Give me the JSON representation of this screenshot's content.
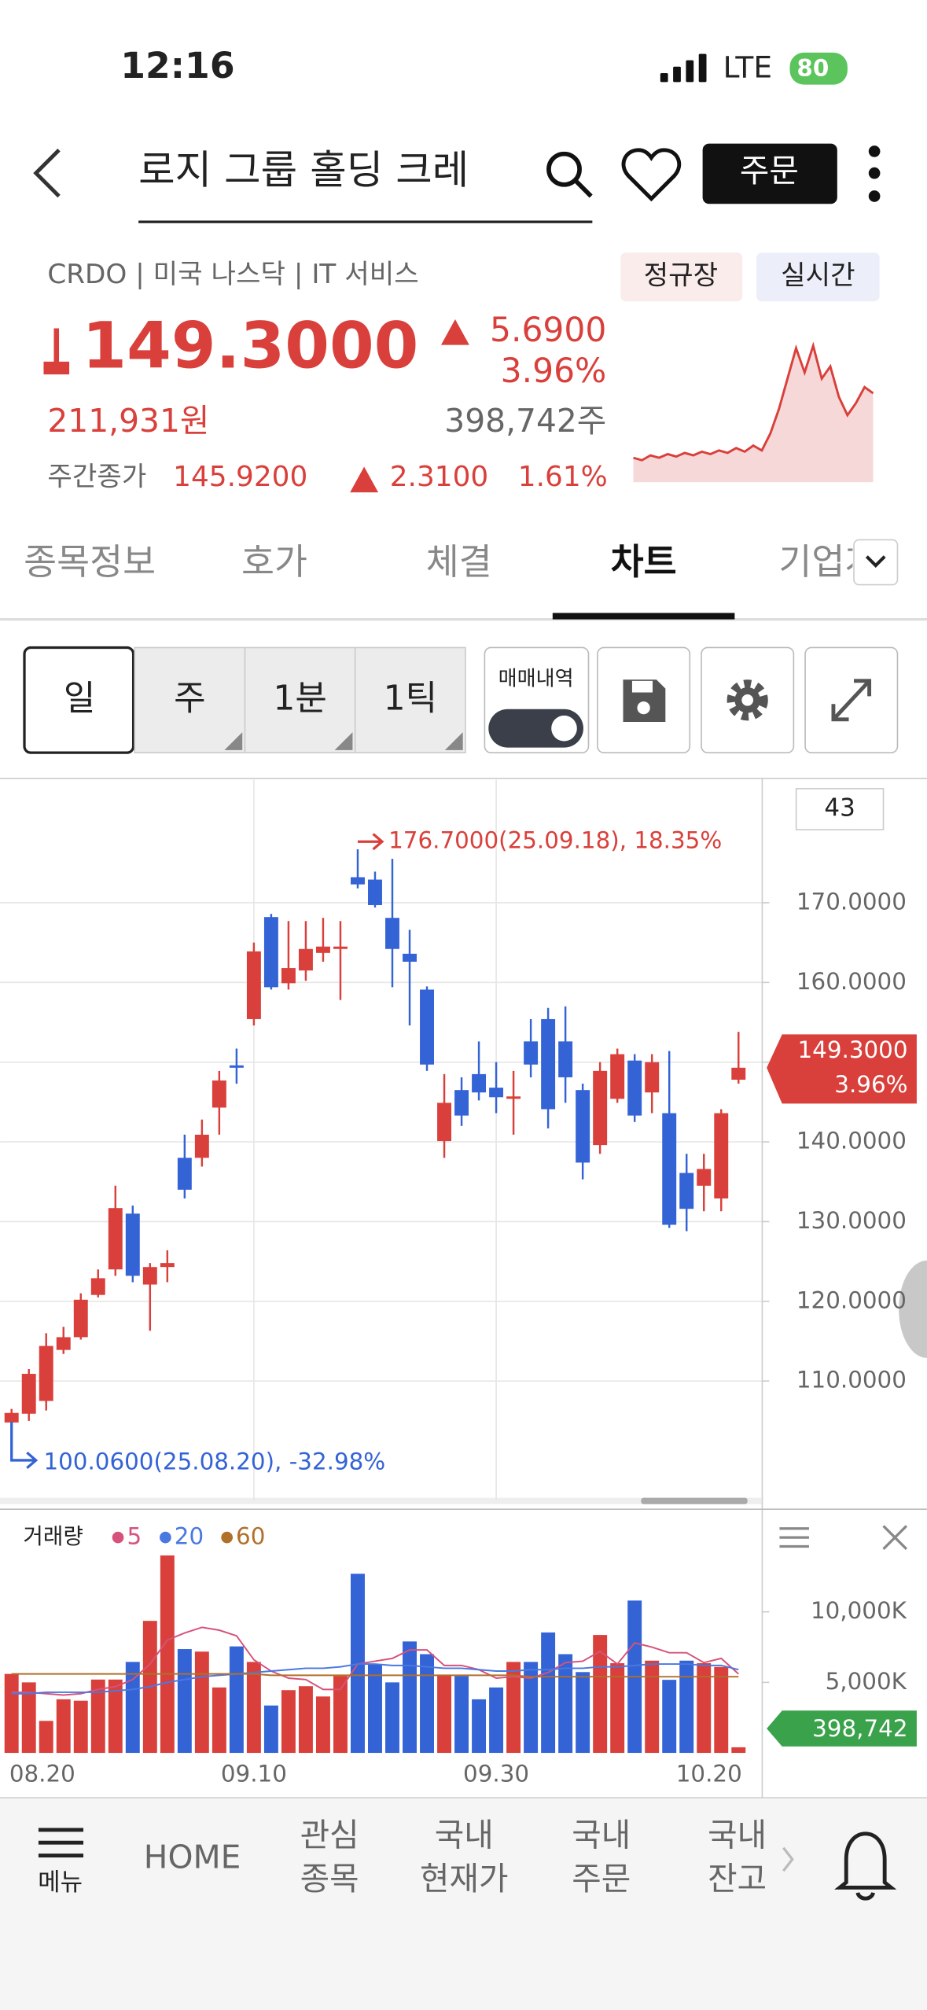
{
  "status_bar": {
    "time": "12:16",
    "network": "LTE",
    "battery": "80"
  },
  "header": {
    "search_text": "로지 그룹 홀딩   크레",
    "order_button": "주문"
  },
  "stock": {
    "ticker_line": "CRDO | 미국 나스닥 | IT 서비스",
    "badges": [
      "정규장",
      "실시간"
    ],
    "price": "149.3000",
    "change": "5.6900",
    "change_pct": "3.96%",
    "price_krw": "211,931원",
    "volume": "398,742주",
    "after_label": "주간종가",
    "after_price": "145.9200",
    "after_change": "2.3100",
    "after_pct": "1.61%"
  },
  "tabs": {
    "items": [
      "종목정보",
      "호가",
      "체결",
      "차트",
      "기업개"
    ],
    "active": 3
  },
  "toolbar": {
    "periods": [
      "일",
      "주",
      "1분",
      "1틱"
    ],
    "selected": 0,
    "trade_history": "매매내역"
  },
  "chart_data": [
    {
      "type": "candlestick",
      "visible_count": 43,
      "up_color": "#d9403b",
      "down_color": "#3463d6",
      "open": [
        104.8,
        105.9,
        107.5,
        113.9,
        115.5,
        120.8,
        124.0,
        131.0,
        122.1,
        124.3,
        138.0,
        138.0,
        144.3,
        149.6,
        155.4,
        168.2,
        159.9,
        161.5,
        163.7,
        164.2,
        173.2,
        172.9,
        168.1,
        163.6,
        159.1,
        140.1,
        146.5,
        148.5,
        146.8,
        145.4,
        152.6,
        155.4,
        152.6,
        146.5,
        139.6,
        145.4,
        150.2,
        146.2,
        143.6,
        136.1,
        134.5,
        132.9,
        147.8
      ],
      "high": [
        106.5,
        111.5,
        116.0,
        116.8,
        121.0,
        124.0,
        134.5,
        132.0,
        124.8,
        126.4,
        140.9,
        142.8,
        148.9,
        151.7,
        165.0,
        168.6,
        167.7,
        167.7,
        168.1,
        167.7,
        176.7,
        173.9,
        175.5,
        166.6,
        159.5,
        148.5,
        148.1,
        152.6,
        150.0,
        148.9,
        155.4,
        156.8,
        157.0,
        147.3,
        150.0,
        151.7,
        151.0,
        151.0,
        151.4,
        138.5,
        138.5,
        144.1,
        153.8
      ],
      "low": [
        100.06,
        105.0,
        106.3,
        113.4,
        115.2,
        120.5,
        123.2,
        122.4,
        116.3,
        122.4,
        132.9,
        136.9,
        140.9,
        147.3,
        154.6,
        159.1,
        159.1,
        160.2,
        162.6,
        157.8,
        171.8,
        169.4,
        159.4,
        154.6,
        148.9,
        138.0,
        142.0,
        145.2,
        143.6,
        140.9,
        148.1,
        141.7,
        144.9,
        135.3,
        138.5,
        144.9,
        142.5,
        143.6,
        129.2,
        128.8,
        131.3,
        131.3,
        147.3
      ],
      "close": [
        106.0,
        110.9,
        114.4,
        115.5,
        120.2,
        122.9,
        131.7,
        123.2,
        124.3,
        124.8,
        134.0,
        140.9,
        147.7,
        149.3,
        163.9,
        159.4,
        161.8,
        164.2,
        164.5,
        164.5,
        172.3,
        169.7,
        164.2,
        162.6,
        149.7,
        144.9,
        143.3,
        146.2,
        145.6,
        145.7,
        149.7,
        144.1,
        148.1,
        137.4,
        148.9,
        151.0,
        143.3,
        150.0,
        129.6,
        131.6,
        136.6,
        143.6,
        149.3
      ],
      "ylim": [
        95.04,
        185.44
      ],
      "yticks": [
        {
          "value": 110,
          "label": "110.0000"
        },
        {
          "value": 120,
          "label": "120.0000"
        },
        {
          "value": 130,
          "label": "130.0000"
        },
        {
          "value": 140,
          "label": "140.0000"
        },
        {
          "value": 150,
          "label": "150.0000"
        },
        {
          "value": 160,
          "label": "160.0000"
        },
        {
          "value": 170,
          "label": "170.0000"
        }
      ],
      "grid": true,
      "max_annotation": {
        "text": "176.7000(25.09.18), 18.35%",
        "color": "#d9403b"
      },
      "min_annotation": {
        "text": "100.0600(25.08.20), -32.98%",
        "color": "#3463d6"
      },
      "last_label": {
        "price": "149.3000",
        "pct": "3.96%"
      }
    },
    {
      "type": "bar",
      "title": "거래량",
      "categories": [
        "08.20",
        null,
        null,
        null,
        null,
        null,
        null,
        null,
        null,
        null,
        null,
        null,
        null,
        null,
        "09.10",
        null,
        null,
        null,
        null,
        null,
        null,
        null,
        null,
        null,
        null,
        null,
        null,
        null,
        "09.30",
        null,
        null,
        null,
        null,
        null,
        null,
        null,
        null,
        null,
        null,
        null,
        null,
        null,
        "10.20"
      ],
      "values": [
        5600,
        5000,
        2270,
        3800,
        3700,
        5200,
        5200,
        6450,
        9360,
        14000,
        7360,
        7180,
        4640,
        7550,
        6450,
        3360,
        4450,
        4730,
        4000,
        5450,
        12700,
        6270,
        5000,
        7900,
        7000,
        5550,
        5450,
        3800,
        4640,
        6450,
        6450,
        8540,
        7000,
        5730,
        8360,
        6360,
        10800,
        6540,
        5180,
        6540,
        6360,
        6090,
        398.742
      ],
      "value_labels": [
        null,
        null,
        null,
        null,
        null,
        null,
        null,
        null,
        null,
        null,
        null,
        null,
        null,
        null,
        null,
        null,
        null,
        null,
        null,
        null,
        null,
        null,
        null,
        null,
        null,
        null,
        null,
        null,
        null,
        null,
        null,
        null,
        null,
        null,
        null,
        null,
        null,
        null,
        null,
        null,
        null,
        null,
        "398,742"
      ],
      "label_color": "#3aa24a",
      "ylim": [
        0,
        17000
      ],
      "yticks": [
        {
          "value": 5000,
          "label": "5,000K"
        },
        {
          "value": 10000,
          "label": "10,000K"
        }
      ],
      "series": [
        {
          "name": "5",
          "color": "#d6527a",
          "values": [
            4300,
            4300,
            4200,
            4100,
            4200,
            4500,
            4700,
            5200,
            6300,
            8000,
            8500,
            8900,
            8700,
            8300,
            6600,
            5800,
            5300,
            5200,
            4500,
            4500,
            6300,
            6500,
            6700,
            7300,
            7300,
            6200,
            6200,
            5900,
            5300,
            5400,
            5300,
            5700,
            6400,
            6500,
            7200,
            6300,
            7800,
            7500,
            7100,
            7100,
            6400,
            6700,
            5600
          ]
        },
        {
          "name": "20",
          "color": "#4a78e0",
          "values": [
            4200,
            4200,
            4300,
            4300,
            4300,
            4300,
            4400,
            4500,
            4700,
            5000,
            5200,
            5400,
            5500,
            5600,
            5700,
            5800,
            5900,
            6000,
            6000,
            6100,
            6300,
            6300,
            6200,
            6200,
            6100,
            6000,
            6000,
            5900,
            5800,
            5800,
            5900,
            5900,
            6000,
            6000,
            6100,
            6100,
            6200,
            6300,
            6300,
            6300,
            6200,
            6200,
            5900
          ]
        },
        {
          "name": "60",
          "color": "#b0702a",
          "values": [
            5600,
            5600,
            5600,
            5600,
            5600,
            5600,
            5600,
            5600,
            5600,
            5600,
            5600,
            5600,
            5600,
            5600,
            5600,
            5500,
            5500,
            5500,
            5500,
            5500,
            5500,
            5500,
            5500,
            5500,
            5500,
            5500,
            5500,
            5500,
            5500,
            5500,
            5400,
            5400,
            5400,
            5400,
            5400,
            5400,
            5400,
            5400,
            5400,
            5400,
            5400,
            5400,
            5400
          ]
        }
      ]
    },
    {
      "type": "line",
      "color": "#d9403b",
      "fill": "#f7d8d8",
      "values": [
        144.0,
        143.8,
        144.2,
        144.0,
        144.3,
        144.1,
        144.4,
        144.2,
        144.5,
        144.3,
        144.6,
        144.4,
        144.8,
        144.5,
        145.0,
        144.6,
        146.0,
        148.0,
        150.5,
        153.0,
        151.0,
        153.2,
        150.5,
        151.5,
        149.0,
        147.5,
        148.5,
        149.8,
        149.3
      ],
      "ylim": [
        142,
        154
      ]
    }
  ],
  "nav": {
    "items": [
      [
        "메뉴"
      ],
      [
        "HOME"
      ],
      [
        "관심",
        "종목"
      ],
      [
        "국내",
        "현재가"
      ],
      [
        "국내",
        "주문"
      ],
      [
        "국내",
        "잔고"
      ]
    ]
  }
}
